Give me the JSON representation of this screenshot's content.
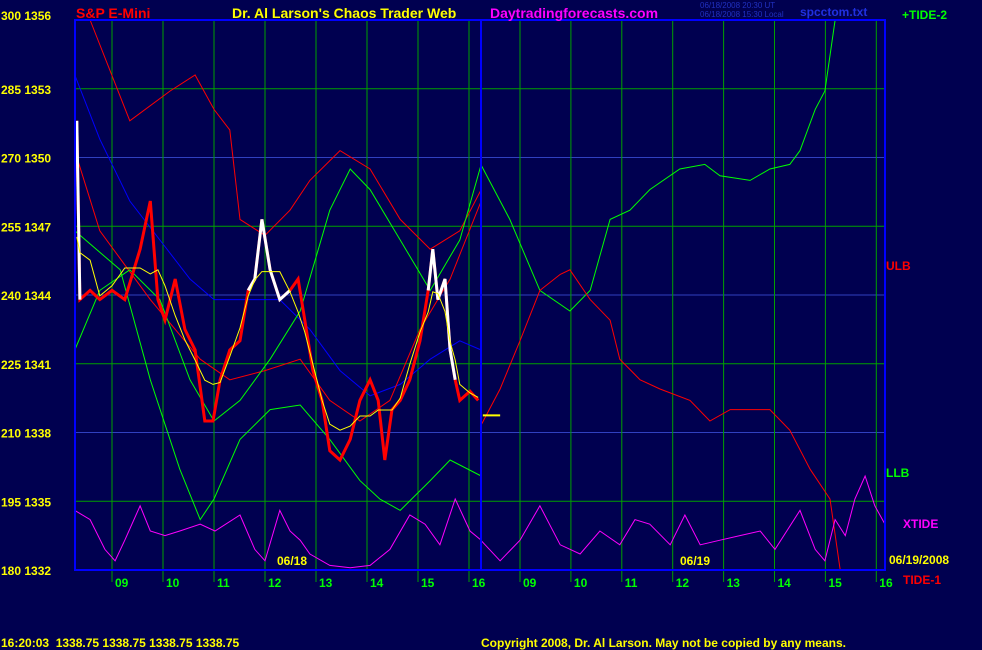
{
  "header": {
    "instrument": "S&P E-Mini",
    "title": "Dr. Al Larson's Chaos Trader Web",
    "site": "Daytradingforecasts.com",
    "timestamp_ut": "06/18/2008 20:30 UT",
    "timestamp_local": "06/18/2008 15:30 Local",
    "file": "spcctom.txt"
  },
  "footer": {
    "quote": "16:20:03  1338.75 1338.75 1338.75 1338.75",
    "copyright": "Copyright 2008, Dr. Al Larson. May not be copied by any means."
  },
  "colors": {
    "background": "#000050",
    "grid_green": "#00a000",
    "grid_blue": "#3040c0",
    "frame": "#0000ff",
    "price": "#ff0000",
    "price_highlight": "#ffffff",
    "smooth": "#ffff00",
    "tide": "#00ff00",
    "band": "#ff0000",
    "blue_curve": "#0000ff",
    "xtide": "#ff00ff",
    "label_yellow": "#ffff00"
  },
  "chart_data": {
    "type": "line",
    "ylim": [
      1332,
      1356
    ],
    "y_ticks": [
      {
        "left": "300",
        "price": "1356",
        "value": 1356
      },
      {
        "left": "285",
        "price": "1353",
        "value": 1353
      },
      {
        "left": "270",
        "price": "1350",
        "value": 1350
      },
      {
        "left": "255",
        "price": "1347",
        "value": 1347
      },
      {
        "left": "240",
        "price": "1344",
        "value": 1344
      },
      {
        "left": "225",
        "price": "1341",
        "value": 1341
      },
      {
        "left": "210",
        "price": "1338",
        "value": 1338
      },
      {
        "left": "195",
        "price": "1335",
        "value": 1335
      },
      {
        "left": "180",
        "price": "1332",
        "value": 1332
      }
    ],
    "grid": true,
    "days": [
      {
        "date": "06/18",
        "hour_ticks": [
          "09",
          "10",
          "11",
          "12",
          "13",
          "14",
          "15",
          "16"
        ]
      },
      {
        "date": "06/19",
        "hour_ticks": [
          "09",
          "10",
          "11",
          "12",
          "13",
          "14",
          "15",
          "16"
        ]
      }
    ],
    "end_date": "06/19/2008",
    "series_labels": {
      "ulb": "ULB",
      "llb": "LLB",
      "xtide": "XTIDE",
      "tide1": "TIDE-1",
      "tide2": "+TIDE-2"
    },
    "price": {
      "day": 0,
      "points": [
        [
          8.31,
          1351.6
        ],
        [
          8.37,
          1343.8
        ],
        [
          8.57,
          1344.2
        ],
        [
          8.76,
          1343.8
        ],
        [
          9,
          1344.2
        ],
        [
          9.25,
          1343.8
        ],
        [
          9.55,
          1346
        ],
        [
          9.75,
          1348.1
        ],
        [
          9.9,
          1343.8
        ],
        [
          10.04,
          1342.9
        ],
        [
          10.24,
          1344.7
        ],
        [
          10.43,
          1342.5
        ],
        [
          10.63,
          1341.6
        ],
        [
          10.82,
          1338.5
        ],
        [
          10.98,
          1338.5
        ],
        [
          11.12,
          1340.3
        ],
        [
          11.31,
          1341.6
        ],
        [
          11.51,
          1342
        ],
        [
          11.67,
          1344.2
        ],
        [
          11.8,
          1344.7
        ],
        [
          11.94,
          1347.3
        ],
        [
          12.1,
          1345.1
        ],
        [
          12.29,
          1343.8
        ],
        [
          12.49,
          1344.2
        ],
        [
          12.65,
          1344.7
        ],
        [
          12.78,
          1342.9
        ],
        [
          12.94,
          1340.7
        ],
        [
          13.12,
          1339.4
        ],
        [
          13.27,
          1337.2
        ],
        [
          13.47,
          1336.8
        ],
        [
          13.67,
          1337.7
        ],
        [
          13.86,
          1339.4
        ],
        [
          14.06,
          1340.3
        ],
        [
          14.22,
          1339.4
        ],
        [
          14.35,
          1336.8
        ],
        [
          14.49,
          1339
        ],
        [
          14.65,
          1339.4
        ],
        [
          14.84,
          1340.3
        ],
        [
          15.04,
          1342
        ],
        [
          15.2,
          1344.2
        ],
        [
          15.29,
          1346
        ],
        [
          15.39,
          1343.8
        ],
        [
          15.53,
          1344.7
        ],
        [
          15.63,
          1341.6
        ],
        [
          15.73,
          1340.3
        ],
        [
          15.82,
          1339.4
        ],
        [
          16.02,
          1339.8
        ],
        [
          16.18,
          1339.4
        ]
      ]
    },
    "highlight_ranges": [
      [
        8.27,
        8.4
      ],
      [
        11.6,
        12.6
      ],
      [
        15.2,
        15.8
      ]
    ],
    "last_price": {
      "day": 1,
      "hours": [
        8.27,
        8.61
      ],
      "value": 1338.75
    },
    "series": [
      {
        "key": "blue_curve",
        "color": "#0000ff",
        "segments": [
          {
            "day": 0,
            "points": [
              [
                8.27,
                1353.6
              ],
              [
                8.76,
                1350.8
              ],
              [
                9.35,
                1348.1
              ],
              [
                9.94,
                1346.4
              ],
              [
                10.53,
                1344.7
              ],
              [
                11,
                1343.8
              ],
              [
                11.7,
                1343.8
              ],
              [
                12.29,
                1343.8
              ],
              [
                12.88,
                1342.5
              ],
              [
                13.47,
                1340.7
              ],
              [
                14.06,
                1339.6
              ],
              [
                14.65,
                1340.1
              ],
              [
                15.24,
                1341.2
              ],
              [
                15.82,
                1342
              ],
              [
                16.24,
                1341.6
              ]
            ]
          }
        ]
      },
      {
        "key": "ulb",
        "color": "#ff0000",
        "segments": [
          {
            "day": 0,
            "points": [
              [
                8.57,
                1356
              ],
              [
                9.35,
                1351.6
              ],
              [
                10.14,
                1352.9
              ],
              [
                10.63,
                1353.6
              ],
              [
                11,
                1352.1
              ],
              [
                11.31,
                1351.2
              ],
              [
                11.51,
                1347.3
              ],
              [
                12,
                1346.6
              ],
              [
                12.49,
                1347.7
              ],
              [
                12.88,
                1349
              ],
              [
                13.47,
                1350.3
              ],
              [
                14.06,
                1349.5
              ],
              [
                14.65,
                1347.3
              ],
              [
                15.24,
                1346
              ],
              [
                15.82,
                1346.8
              ],
              [
                16.24,
                1348.6
              ]
            ]
          }
        ]
      },
      {
        "key": "lower_red",
        "color": "#ff0000",
        "segments": [
          {
            "day": 0,
            "points": [
              [
                8.27,
                1350.3
              ],
              [
                8.76,
                1346.8
              ],
              [
                9.75,
                1343.8
              ],
              [
                10.73,
                1341.2
              ],
              [
                11.31,
                1340.3
              ],
              [
                12,
                1340.7
              ],
              [
                12.69,
                1341.2
              ],
              [
                13.27,
                1339.4
              ],
              [
                13.86,
                1338.5
              ],
              [
                14.45,
                1339.4
              ],
              [
                15.04,
                1342.5
              ],
              [
                15.63,
                1344.7
              ],
              [
                16.24,
                1348.1
              ]
            ]
          }
        ]
      },
      {
        "key": "green_upper",
        "color": "#00ff00",
        "segments": [
          {
            "day": 0,
            "points": [
              [
                8.27,
                1341.6
              ],
              [
                8.76,
                1344.2
              ],
              [
                9.35,
                1345.1
              ],
              [
                9.94,
                1343.8
              ],
              [
                10.53,
                1340.3
              ],
              [
                11,
                1338.5
              ],
              [
                11.51,
                1339.4
              ],
              [
                12.1,
                1341.2
              ],
              [
                12.69,
                1343.3
              ],
              [
                13.27,
                1347.7
              ],
              [
                13.67,
                1349.5
              ],
              [
                14.06,
                1348.6
              ],
              [
                14.65,
                1346.4
              ],
              [
                15.24,
                1344.2
              ],
              [
                15.82,
                1346.4
              ],
              [
                16.24,
                1349.7
              ]
            ]
          },
          {
            "day": 1,
            "points": [
              [
                8.23,
                1349.7
              ],
              [
                8.8,
                1347.3
              ],
              [
                9.39,
                1344.2
              ],
              [
                9.98,
                1343.3
              ],
              [
                10.38,
                1344.2
              ],
              [
                10.77,
                1347.3
              ],
              [
                11.16,
                1347.7
              ],
              [
                11.55,
                1348.6
              ],
              [
                12.14,
                1349.5
              ],
              [
                12.63,
                1349.7
              ],
              [
                12.93,
                1349.2
              ],
              [
                13.52,
                1349
              ],
              [
                13.91,
                1349.5
              ],
              [
                14.3,
                1349.7
              ],
              [
                14.5,
                1350.3
              ],
              [
                14.8,
                1352.1
              ],
              [
                14.99,
                1352.9
              ],
              [
                15.19,
                1356
              ],
              [
                16.17,
                1356
              ]
            ]
          }
        ]
      },
      {
        "key": "llb",
        "color": "#00ff00",
        "segments": [
          {
            "day": 0,
            "points": [
              [
                8.27,
                1346.8
              ],
              [
                9.16,
                1345.1
              ],
              [
                9.75,
                1340.3
              ],
              [
                10.33,
                1336.4
              ],
              [
                10.73,
                1334.2
              ],
              [
                11,
                1335.1
              ],
              [
                11.51,
                1337.7
              ],
              [
                12.1,
                1339
              ],
              [
                12.69,
                1339.2
              ],
              [
                13.27,
                1337.7
              ],
              [
                13.86,
                1335.9
              ],
              [
                14.25,
                1335.1
              ],
              [
                14.65,
                1334.6
              ],
              [
                15.24,
                1335.9
              ],
              [
                15.63,
                1336.8
              ],
              [
                16.24,
                1336.1
              ]
            ]
          }
        ]
      },
      {
        "key": "tide1",
        "color": "#ff0000",
        "segments": [
          {
            "day": 1,
            "points": [
              [
                8.23,
                1338.3
              ],
              [
                8.61,
                1339.9
              ],
              [
                9,
                1342
              ],
              [
                9.39,
                1344.2
              ],
              [
                9.79,
                1344.9
              ],
              [
                9.98,
                1345.1
              ],
              [
                10.38,
                1343.8
              ],
              [
                10.77,
                1342.9
              ],
              [
                10.96,
                1341.2
              ],
              [
                11.36,
                1340.3
              ],
              [
                11.75,
                1339.9
              ],
              [
                12.34,
                1339.4
              ],
              [
                12.73,
                1338.5
              ],
              [
                13.13,
                1339
              ],
              [
                13.91,
                1339
              ],
              [
                14.3,
                1338.1
              ],
              [
                14.7,
                1336.4
              ],
              [
                15.09,
                1335.1
              ],
              [
                15.29,
                1332
              ],
              [
                16.17,
                1332
              ]
            ]
          }
        ]
      },
      {
        "key": "xtide",
        "color": "#ff00ff",
        "segments": [
          {
            "day": 0,
            "points": [
              [
                8.27,
                1334.6
              ],
              [
                8.57,
                1334.2
              ],
              [
                8.86,
                1332.9
              ],
              [
                9.06,
                1332.4
              ],
              [
                9.25,
                1333.3
              ],
              [
                9.55,
                1334.8
              ],
              [
                9.75,
                1333.7
              ],
              [
                10.04,
                1333.5
              ],
              [
                10.33,
                1333.7
              ],
              [
                10.73,
                1334
              ],
              [
                11.02,
                1333.7
              ],
              [
                11.51,
                1334.4
              ],
              [
                11.8,
                1332.9
              ],
              [
                12,
                1332.4
              ],
              [
                12.29,
                1334.6
              ],
              [
                12.49,
                1333.7
              ],
              [
                12.69,
                1333.3
              ],
              [
                12.88,
                1332.7
              ],
              [
                13.27,
                1332.2
              ],
              [
                13.67,
                1332.1
              ],
              [
                14.06,
                1332.2
              ],
              [
                14.45,
                1332.9
              ],
              [
                14.84,
                1334.4
              ],
              [
                15.14,
                1334
              ],
              [
                15.43,
                1333.1
              ],
              [
                15.73,
                1335.1
              ],
              [
                16.02,
                1333.7
              ],
              [
                16.24,
                1333.3
              ]
            ]
          },
          {
            "day": 1,
            "points": [
              [
                8.23,
                1333.3
              ],
              [
                8.61,
                1332.4
              ],
              [
                9,
                1333.3
              ],
              [
                9.39,
                1334.8
              ],
              [
                9.79,
                1333.1
              ],
              [
                10.18,
                1332.7
              ],
              [
                10.57,
                1333.7
              ],
              [
                10.96,
                1333.1
              ],
              [
                11.26,
                1334.2
              ],
              [
                11.55,
                1334
              ],
              [
                11.95,
                1333.1
              ],
              [
                12.24,
                1334.4
              ],
              [
                12.54,
                1333.1
              ],
              [
                12.93,
                1333.3
              ],
              [
                13.32,
                1333.5
              ],
              [
                13.72,
                1333.7
              ],
              [
                14.01,
                1332.9
              ],
              [
                14.5,
                1334.6
              ],
              [
                14.8,
                1332.9
              ],
              [
                14.99,
                1332.4
              ],
              [
                15.19,
                1334.2
              ],
              [
                15.39,
                1333.5
              ],
              [
                15.58,
                1335.1
              ],
              [
                15.78,
                1336.1
              ],
              [
                15.97,
                1334.8
              ],
              [
                16.17,
                1334
              ]
            ]
          }
        ]
      }
    ]
  }
}
